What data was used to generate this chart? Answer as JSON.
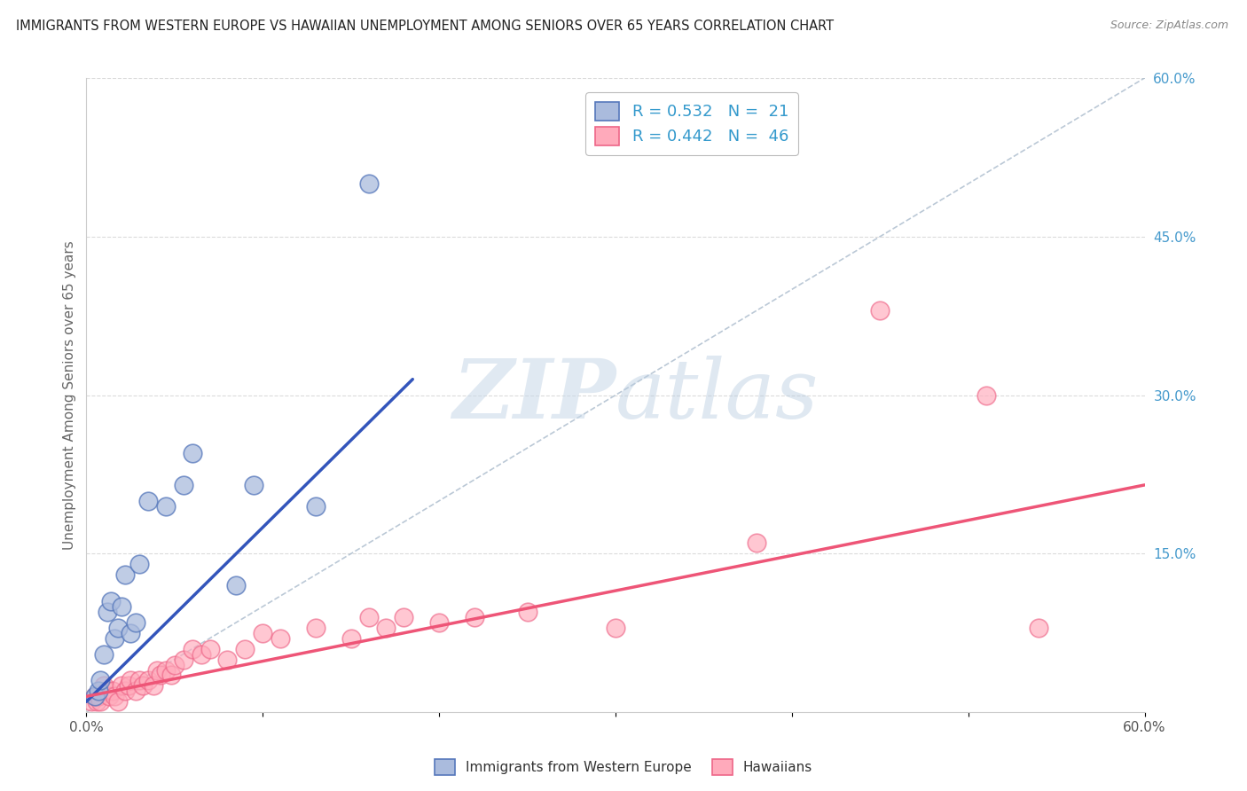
{
  "title": "IMMIGRANTS FROM WESTERN EUROPE VS HAWAIIAN UNEMPLOYMENT AMONG SENIORS OVER 65 YEARS CORRELATION CHART",
  "source": "Source: ZipAtlas.com",
  "ylabel": "Unemployment Among Seniors over 65 years",
  "xlim": [
    0.0,
    0.6
  ],
  "ylim": [
    0.0,
    0.6
  ],
  "xticks": [
    0.0,
    0.1,
    0.2,
    0.3,
    0.4,
    0.5,
    0.6
  ],
  "yticks_right": [
    0.0,
    0.15,
    0.3,
    0.45,
    0.6
  ],
  "ytick_labels_right": [
    "",
    "15.0%",
    "30.0%",
    "45.0%",
    "60.0%"
  ],
  "xtick_labels": [
    "0.0%",
    "",
    "",
    "",
    "",
    "",
    "60.0%"
  ],
  "background_color": "#ffffff",
  "grid_color": "#cccccc",
  "diagonal_color": "#aabbcc",
  "blue_fill": "#aabbdd",
  "blue_edge": "#5577bb",
  "pink_fill": "#ffaabb",
  "pink_edge": "#ee6688",
  "blue_line_color": "#3355bb",
  "pink_line_color": "#ee5577",
  "legend_label_blue": "Immigrants from Western Europe",
  "legend_label_pink": "Hawaiians",
  "watermark_zip": "ZIP",
  "watermark_atlas": "atlas",
  "blue_scatter_x": [
    0.005,
    0.007,
    0.008,
    0.01,
    0.012,
    0.014,
    0.016,
    0.018,
    0.02,
    0.022,
    0.025,
    0.028,
    0.03,
    0.035,
    0.045,
    0.055,
    0.06,
    0.085,
    0.095,
    0.13,
    0.16
  ],
  "blue_scatter_y": [
    0.015,
    0.02,
    0.03,
    0.055,
    0.095,
    0.105,
    0.07,
    0.08,
    0.1,
    0.13,
    0.075,
    0.085,
    0.14,
    0.2,
    0.195,
    0.215,
    0.245,
    0.12,
    0.215,
    0.195,
    0.5
  ],
  "pink_scatter_x": [
    0.003,
    0.005,
    0.006,
    0.007,
    0.008,
    0.01,
    0.012,
    0.013,
    0.015,
    0.016,
    0.018,
    0.02,
    0.022,
    0.024,
    0.025,
    0.028,
    0.03,
    0.032,
    0.035,
    0.038,
    0.04,
    0.042,
    0.045,
    0.048,
    0.05,
    0.055,
    0.06,
    0.065,
    0.07,
    0.08,
    0.09,
    0.1,
    0.11,
    0.13,
    0.15,
    0.16,
    0.17,
    0.18,
    0.2,
    0.22,
    0.25,
    0.3,
    0.38,
    0.45,
    0.51,
    0.54
  ],
  "pink_scatter_y": [
    0.01,
    0.015,
    0.01,
    0.015,
    0.01,
    0.025,
    0.02,
    0.015,
    0.02,
    0.015,
    0.01,
    0.025,
    0.02,
    0.025,
    0.03,
    0.02,
    0.03,
    0.025,
    0.03,
    0.025,
    0.04,
    0.035,
    0.04,
    0.035,
    0.045,
    0.05,
    0.06,
    0.055,
    0.06,
    0.05,
    0.06,
    0.075,
    0.07,
    0.08,
    0.07,
    0.09,
    0.08,
    0.09,
    0.085,
    0.09,
    0.095,
    0.08,
    0.16,
    0.38,
    0.3,
    0.08
  ],
  "blue_line_x": [
    0.0,
    0.185
  ],
  "blue_line_y": [
    0.01,
    0.315
  ],
  "pink_line_x": [
    0.0,
    0.6
  ],
  "pink_line_y": [
    0.015,
    0.215
  ],
  "diag_line_x": [
    0.0,
    0.6
  ],
  "diag_line_y": [
    0.0,
    0.6
  ],
  "legend_R_blue": "R = 0.532",
  "legend_N_blue": "N =  21",
  "legend_R_pink": "R = 0.442",
  "legend_N_pink": "N =  46"
}
